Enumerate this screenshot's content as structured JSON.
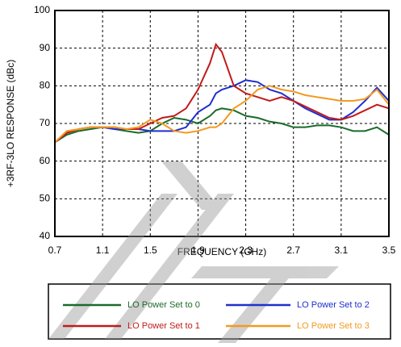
{
  "chart_data": {
    "type": "line",
    "xlabel": "FREQUENCY (GHz)",
    "ylabel": "+3RF-3LO RESPONSE (dBc)",
    "x": [
      0.7,
      0.8,
      0.9,
      1.0,
      1.1,
      1.2,
      1.3,
      1.4,
      1.5,
      1.6,
      1.7,
      1.8,
      1.9,
      2.0,
      2.05,
      2.1,
      2.2,
      2.3,
      2.4,
      2.5,
      2.6,
      2.7,
      2.8,
      2.9,
      3.0,
      3.1,
      3.2,
      3.3,
      3.4,
      3.5
    ],
    "series": [
      {
        "name": "LO Power Set to 0",
        "color": "#1a6b2a",
        "values": [
          65,
          67,
          68,
          68.5,
          69,
          68.5,
          68,
          67.5,
          68,
          70,
          71.5,
          71,
          70,
          72,
          73.5,
          74,
          73.5,
          72,
          71.5,
          70.5,
          70,
          69,
          69,
          69.5,
          69.5,
          69,
          68,
          68,
          69,
          67
        ]
      },
      {
        "name": "LO Power Set to 2",
        "color": "#1f2fd0",
        "values": [
          65,
          67.5,
          68.5,
          69,
          69,
          68.5,
          68.5,
          68.5,
          68,
          68,
          68,
          69,
          73,
          75,
          78,
          79,
          80,
          81.5,
          81,
          79,
          78,
          76,
          74,
          72.5,
          71,
          71,
          73,
          76,
          79.5,
          76
        ]
      },
      {
        "name": "LO Power Set to 1",
        "color": "#c21a1a",
        "values": [
          65,
          67.5,
          68.5,
          69,
          69,
          69,
          68.5,
          68.5,
          70,
          71.5,
          72,
          74,
          79,
          86,
          91,
          89,
          80,
          78,
          77,
          76,
          77,
          76,
          74.5,
          73,
          71.5,
          71,
          72,
          73.5,
          75,
          74
        ]
      },
      {
        "name": "LO Power Set to 3",
        "color": "#f39a1e",
        "values": [
          65,
          68,
          68.5,
          69,
          69,
          69,
          68.5,
          69,
          71,
          70,
          68,
          67.5,
          68,
          69,
          69,
          70,
          74,
          76,
          79,
          80,
          79,
          78.5,
          77.5,
          77,
          76.5,
          76,
          76,
          76.5,
          79,
          75
        ]
      }
    ],
    "xlim": [
      0.7,
      3.5
    ],
    "xticks": [
      0.7,
      1.1,
      1.5,
      1.9,
      2.3,
      2.7,
      3.1,
      3.5
    ],
    "ylim": [
      40,
      100
    ],
    "yticks": [
      40,
      50,
      60,
      70,
      80,
      90,
      100
    ],
    "grid": true,
    "legend": "bottom"
  }
}
